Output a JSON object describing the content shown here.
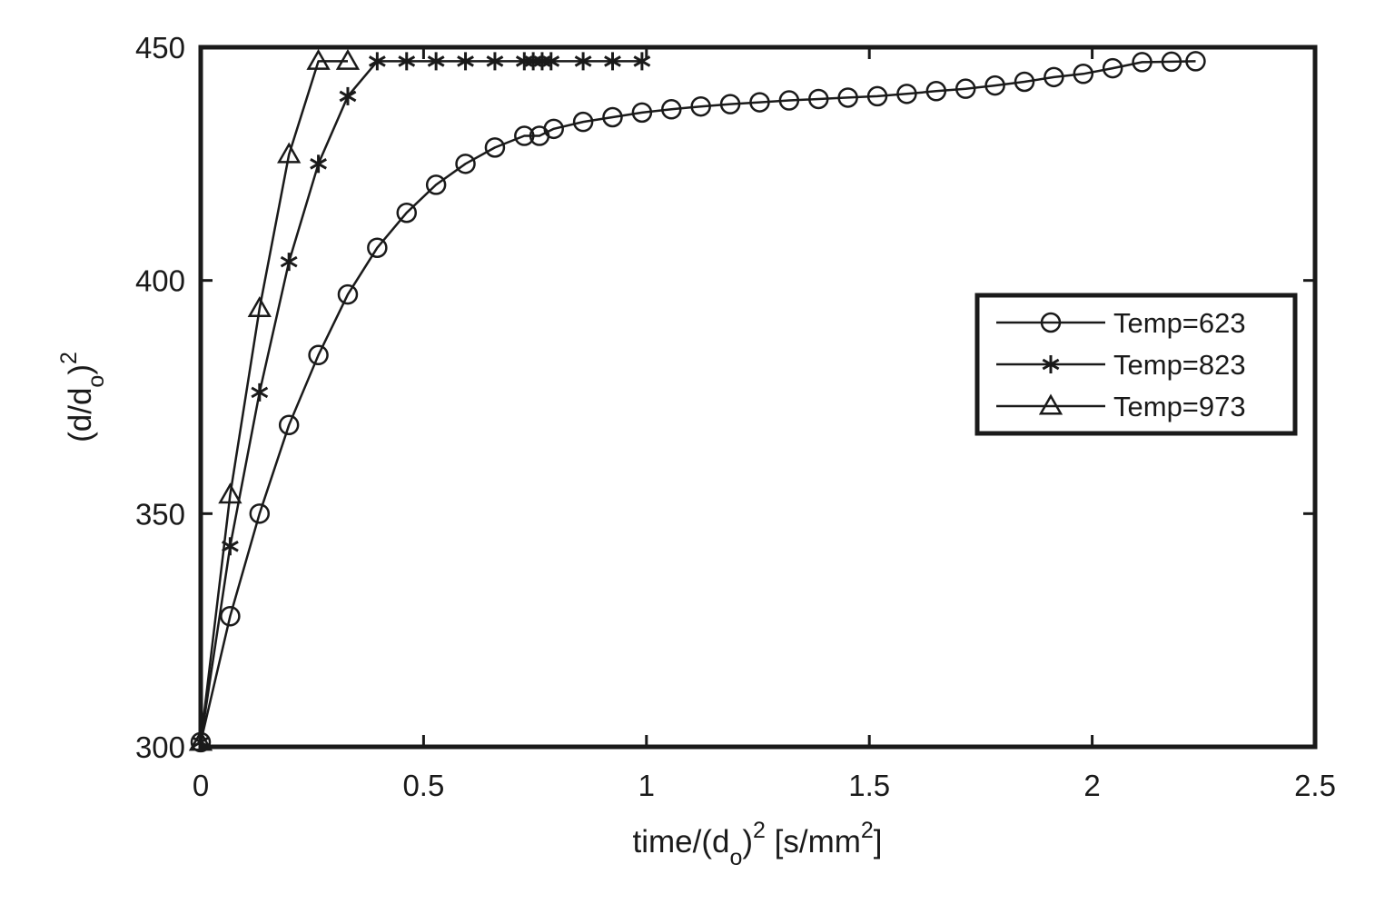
{
  "chart_data": {
    "type": "line",
    "title": "",
    "xlabel": {
      "prefix": "time/(d",
      "sub": "o",
      "mid": ")",
      "sup": "2",
      "unit_prefix": " [s/mm",
      "unit_sup": "2",
      "unit_suffix": "]"
    },
    "ylabel": {
      "prefix": "(d/d",
      "sub": "o",
      "mid": ")",
      "sup": "2"
    },
    "xlim": [
      0,
      2.5
    ],
    "ylim": [
      300,
      450
    ],
    "xticks": [
      0,
      0.5,
      1,
      1.5,
      2,
      2.5
    ],
    "xtick_labels": [
      "0",
      "0.5",
      "1",
      "1.5",
      "2",
      "2.5"
    ],
    "yticks": [
      300,
      350,
      400,
      450
    ],
    "ytick_labels": [
      "300",
      "350",
      "400",
      "450"
    ],
    "grid": false,
    "legend_position": "right",
    "line_color": "#1a1a1a",
    "series": [
      {
        "name": "Temp=623",
        "marker": "circle",
        "x": [
          0,
          0.066,
          0.132,
          0.198,
          0.264,
          0.33,
          0.396,
          0.462,
          0.528,
          0.594,
          0.66,
          0.726,
          0.76,
          0.792,
          0.858,
          0.924,
          0.99,
          1.056,
          1.122,
          1.188,
          1.254,
          1.32,
          1.386,
          1.452,
          1.518,
          1.584,
          1.65,
          1.716,
          1.782,
          1.848,
          1.914,
          1.98,
          2.046,
          2.112,
          2.178,
          2.232
        ],
        "y": [
          301,
          328,
          350,
          369,
          384,
          397,
          407,
          414.5,
          420.5,
          425,
          428.5,
          431,
          431,
          432.5,
          434,
          435,
          436,
          436.7,
          437.3,
          437.8,
          438.2,
          438.6,
          438.9,
          439.2,
          439.5,
          440,
          440.6,
          441.1,
          441.8,
          442.6,
          443.6,
          444.3,
          445.5,
          446.8,
          446.9,
          447
        ]
      },
      {
        "name": "Temp=823",
        "marker": "asterisk",
        "x": [
          0,
          0.066,
          0.132,
          0.198,
          0.264,
          0.33,
          0.396,
          0.462,
          0.528,
          0.594,
          0.66,
          0.726,
          0.746,
          0.766,
          0.786,
          0.858,
          0.924,
          0.99
        ],
        "y": [
          301,
          343,
          376,
          404,
          425,
          439.5,
          447,
          447,
          447,
          447,
          447,
          447,
          447,
          447,
          447,
          447,
          447,
          447
        ]
      },
      {
        "name": "Temp=973",
        "marker": "triangle",
        "x": [
          0,
          0.066,
          0.132,
          0.198,
          0.264,
          0.33
        ],
        "y": [
          301,
          354,
          394,
          427,
          447,
          447
        ]
      }
    ]
  }
}
